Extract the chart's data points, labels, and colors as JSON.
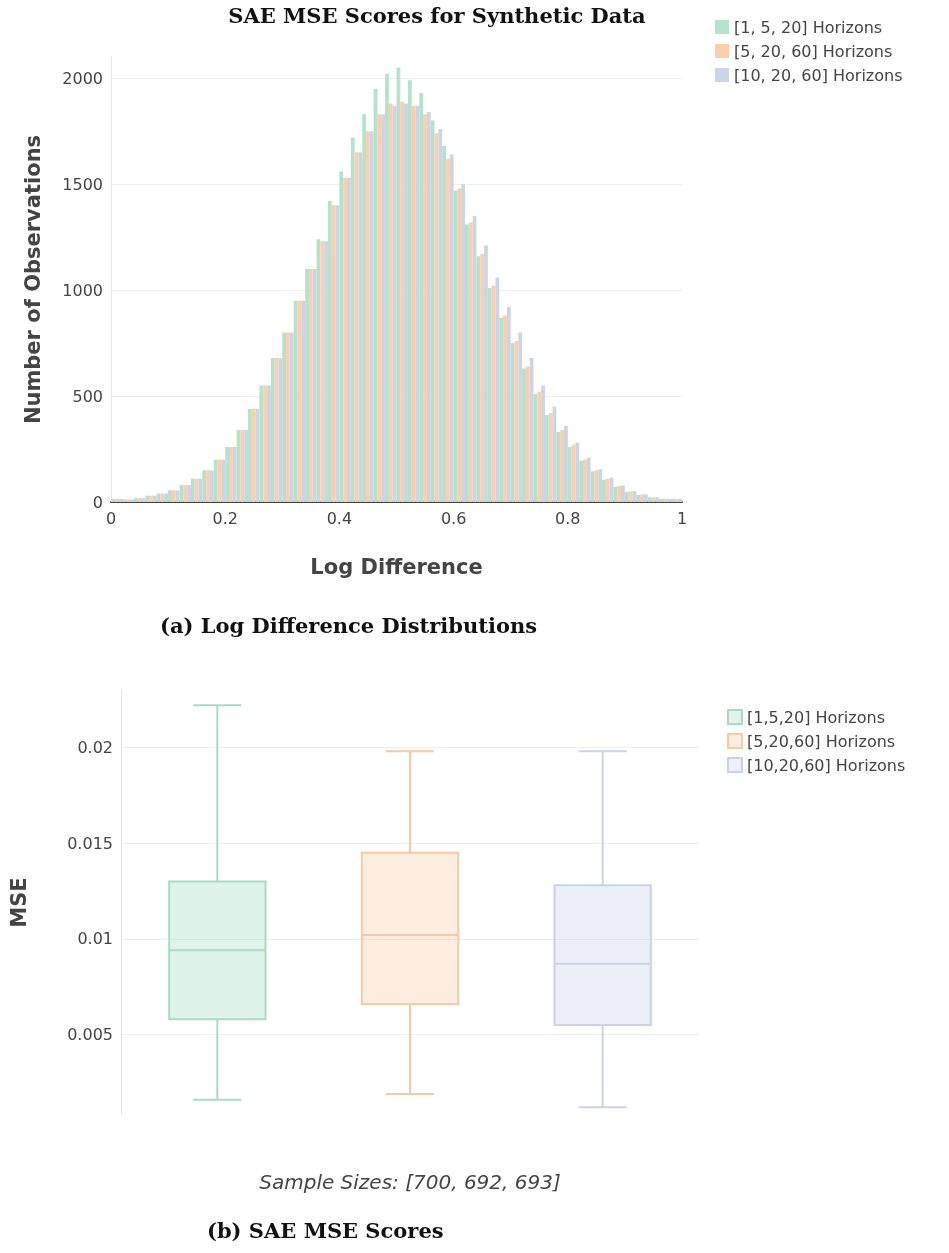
{
  "chart_data": [
    {
      "type": "histogram",
      "title": "SAE MSE Scores for Synthetic Data",
      "xlabel": "Log Difference",
      "ylabel": "Number of Observations",
      "annotations": [
        "(a) Log Difference Distributions"
      ],
      "bins": [
        0,
        0.02,
        0.04,
        0.06,
        0.08,
        0.1,
        0.12,
        0.14,
        0.16,
        0.18,
        0.2,
        0.22,
        0.24,
        0.26,
        0.28,
        0.3,
        0.32,
        0.34,
        0.36,
        0.38,
        0.4,
        0.42,
        0.44,
        0.46,
        0.48,
        0.5,
        0.52,
        0.54,
        0.56,
        0.58,
        0.6,
        0.62,
        0.64,
        0.66,
        0.68,
        0.7,
        0.72,
        0.74,
        0.76,
        0.78,
        0.8,
        0.82,
        0.84,
        0.86,
        0.88,
        0.9,
        0.92,
        0.94,
        0.96,
        0.98,
        1
      ],
      "series": [
        {
          "name": "[1, 5, 20] Horizons",
          "color": "#b3e2cd",
          "values": [
            15,
            12,
            18,
            30,
            40,
            55,
            80,
            110,
            150,
            200,
            260,
            340,
            440,
            550,
            680,
            800,
            950,
            1100,
            1240,
            1420,
            1560,
            1720,
            1830,
            1950,
            2020,
            2050,
            1990,
            1930,
            1800,
            1680,
            1470,
            1310,
            1160,
            1010,
            870,
            750,
            630,
            510,
            410,
            330,
            260,
            195,
            145,
            105,
            72,
            48,
            33,
            22,
            15,
            15
          ]
        },
        {
          "name": "[5, 20, 60] Horizons",
          "color": "#fdcdac",
          "values": [
            15,
            12,
            18,
            30,
            40,
            55,
            80,
            110,
            150,
            200,
            260,
            340,
            440,
            550,
            680,
            800,
            950,
            1100,
            1230,
            1400,
            1530,
            1650,
            1750,
            1830,
            1880,
            1890,
            1870,
            1830,
            1740,
            1620,
            1480,
            1320,
            1170,
            1020,
            880,
            760,
            640,
            520,
            420,
            340,
            270,
            200,
            150,
            110,
            75,
            50,
            35,
            22,
            15,
            15
          ]
        },
        {
          "name": "[10, 20, 60] Horizons",
          "color": "#cbd5e8",
          "values": [
            15,
            12,
            18,
            30,
            40,
            55,
            80,
            110,
            150,
            200,
            260,
            340,
            440,
            550,
            680,
            800,
            950,
            1100,
            1230,
            1400,
            1530,
            1650,
            1750,
            1830,
            1870,
            1880,
            1870,
            1840,
            1760,
            1640,
            1500,
            1350,
            1210,
            1060,
            920,
            800,
            680,
            550,
            450,
            360,
            280,
            210,
            155,
            115,
            78,
            52,
            36,
            23,
            15,
            15
          ]
        }
      ],
      "xlim": [
        0,
        1
      ],
      "xticks": [
        0,
        0.2,
        0.4,
        0.6,
        0.8,
        1
      ],
      "ylim": [
        0,
        2100
      ],
      "yticks": [
        0,
        500,
        1000,
        1500,
        2000
      ],
      "grid": "y",
      "legend": "top right"
    },
    {
      "type": "box",
      "xlabel": "Sample Sizes: [700, 692, 693]",
      "ylabel": "MSE",
      "annotations": [
        "(b) SAE MSE Scores"
      ],
      "categories": [
        null,
        null,
        null
      ],
      "series": [
        {
          "name": "[1,5,20] Horizons",
          "color": "#a6dcc2",
          "boxes": [
            {
              "low": 0.0016,
              "q1": 0.0058,
              "median": 0.0094,
              "q3": 0.013,
              "high": 0.0222
            },
            null,
            null
          ]
        },
        {
          "name": "[5,20,60] Horizons",
          "color": "#f9c9a5",
          "boxes": [
            null,
            {
              "low": 0.0019,
              "q1": 0.0066,
              "median": 0.0102,
              "q3": 0.0145,
              "high": 0.0198
            },
            null
          ]
        },
        {
          "name": "[10,20,60] Horizons",
          "color": "#c9d2e6",
          "boxes": [
            null,
            null,
            {
              "low": 0.0012,
              "q1": 0.0055,
              "median": 0.0087,
              "q3": 0.0128,
              "high": 0.0198
            }
          ]
        }
      ],
      "ylim": [
        0.0008,
        0.023
      ],
      "yticks": [
        0.005,
        0.01,
        0.015,
        0.02
      ],
      "grid": "y",
      "legend": "top right"
    }
  ]
}
